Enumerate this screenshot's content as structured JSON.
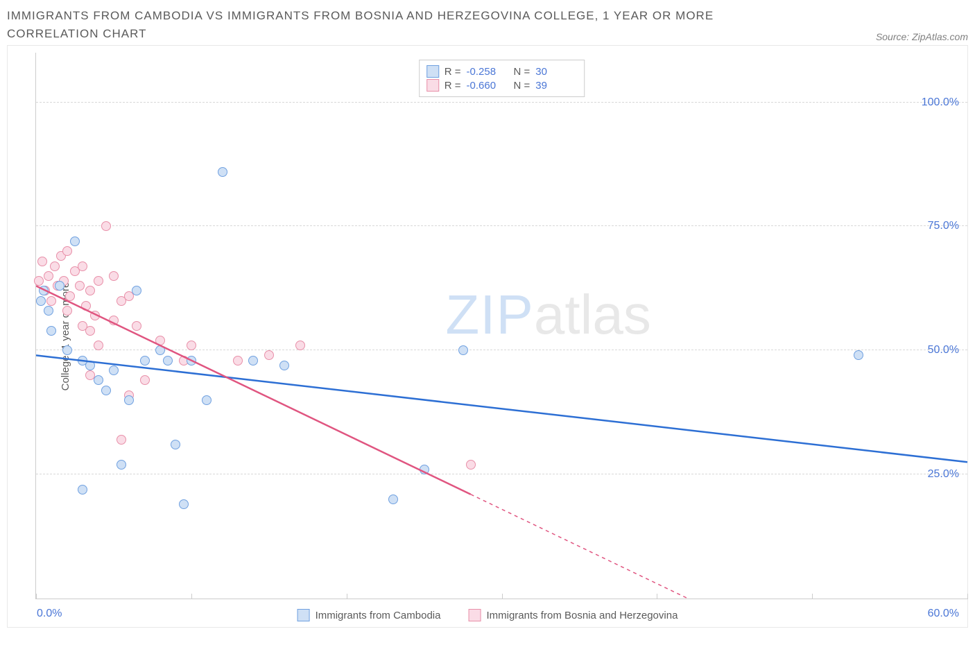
{
  "title": "IMMIGRANTS FROM CAMBODIA VS IMMIGRANTS FROM BOSNIA AND HERZEGOVINA COLLEGE, 1 YEAR OR MORE CORRELATION CHART",
  "source_label": "Source: ZipAtlas.com",
  "ylabel": "College, 1 year or more",
  "watermark_a": "ZIP",
  "watermark_b": "atlas",
  "chart": {
    "type": "scatter",
    "background_color": "#ffffff",
    "grid_color": "#d8d8d8",
    "axis_color": "#cccccc",
    "text_color": "#5a5a5a",
    "value_color": "#4a76d6",
    "xlim": [
      0,
      60
    ],
    "ylim": [
      0,
      110
    ],
    "x_ticks": [
      0,
      10,
      20,
      30,
      40,
      50,
      60
    ],
    "x_tick_labels": {
      "0": "0.0%",
      "60": "60.0%"
    },
    "y_gridlines": [
      25,
      50,
      75,
      100
    ],
    "y_tick_labels": {
      "25": "25.0%",
      "50": "50.0%",
      "75": "75.0%",
      "100": "100.0%"
    },
    "marker_radius": 7,
    "marker_stroke_width": 1.5,
    "line_width": 2.5,
    "series": [
      {
        "name": "Immigrants from Cambodia",
        "fill_color": "#cfe0f5",
        "stroke_color": "#6fa0e0",
        "line_color": "#2d6fd4",
        "r_value": "-0.258",
        "n_value": "30",
        "regression": {
          "x1": 0,
          "y1": 49,
          "x2": 60,
          "y2": 27.5
        },
        "points": [
          [
            0.3,
            60
          ],
          [
            0.5,
            62
          ],
          [
            0.8,
            58
          ],
          [
            1.0,
            54
          ],
          [
            1.5,
            63
          ],
          [
            2.0,
            50
          ],
          [
            2.5,
            72
          ],
          [
            3.0,
            48
          ],
          [
            3.5,
            47
          ],
          [
            4.0,
            44
          ],
          [
            4.5,
            42
          ],
          [
            5.0,
            46
          ],
          [
            5.5,
            27
          ],
          [
            6.0,
            40
          ],
          [
            7.0,
            48
          ],
          [
            3.0,
            22
          ],
          [
            8.0,
            50
          ],
          [
            8.5,
            48
          ],
          [
            9.0,
            31
          ],
          [
            10.0,
            48
          ],
          [
            9.5,
            19
          ],
          [
            11.0,
            40
          ],
          [
            12.0,
            86
          ],
          [
            14.0,
            48
          ],
          [
            16.0,
            47
          ],
          [
            23.0,
            20
          ],
          [
            25.0,
            26
          ],
          [
            27.5,
            50
          ],
          [
            53.0,
            49
          ],
          [
            6.5,
            62
          ]
        ]
      },
      {
        "name": "Immigrants from Bosnia and Herzegovina",
        "fill_color": "#fadce6",
        "stroke_color": "#e88fa8",
        "line_color": "#e05580",
        "r_value": "-0.660",
        "n_value": "39",
        "regression": {
          "x1": 0,
          "y1": 63,
          "x2": 42,
          "y2": 0
        },
        "dash_extend": {
          "x1": 28,
          "y1": 21,
          "x2": 42,
          "y2": 0
        },
        "points": [
          [
            0.2,
            64
          ],
          [
            0.4,
            68
          ],
          [
            0.6,
            62
          ],
          [
            0.8,
            65
          ],
          [
            1.0,
            60
          ],
          [
            1.2,
            67
          ],
          [
            1.4,
            63
          ],
          [
            1.6,
            69
          ],
          [
            1.8,
            64
          ],
          [
            2.0,
            58
          ],
          [
            2.2,
            61
          ],
          [
            2.5,
            66
          ],
          [
            2.8,
            63
          ],
          [
            3.0,
            67
          ],
          [
            3.2,
            59
          ],
          [
            3.5,
            62
          ],
          [
            3.8,
            57
          ],
          [
            4.0,
            64
          ],
          [
            4.5,
            75
          ],
          [
            5.0,
            56
          ],
          [
            5.5,
            60
          ],
          [
            3.5,
            54
          ],
          [
            6.0,
            61
          ],
          [
            6.5,
            55
          ],
          [
            7.0,
            44
          ],
          [
            4.0,
            51
          ],
          [
            3.5,
            45
          ],
          [
            8.0,
            52
          ],
          [
            5.5,
            32
          ],
          [
            6.0,
            41
          ],
          [
            9.5,
            48
          ],
          [
            10.0,
            51
          ],
          [
            3.0,
            55
          ],
          [
            2.0,
            70
          ],
          [
            5.0,
            65
          ],
          [
            13.0,
            48
          ],
          [
            15.0,
            49
          ],
          [
            17.0,
            51
          ],
          [
            28.0,
            27
          ]
        ]
      }
    ]
  },
  "legend_top_label_r": "R =",
  "legend_top_label_n": "N ="
}
